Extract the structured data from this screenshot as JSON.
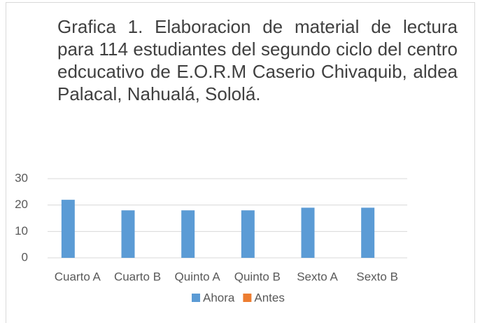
{
  "chart_data": {
    "type": "bar",
    "title": "Grafica 1. Elaboracion de material de lectura para 114 estudiantes del segundo ciclo del centro edcucativo de E.O.R.M Caserio Chivaquib, aldea Palacal, Nahualá, Sololá.",
    "categories": [
      "Cuarto A",
      "Cuarto B",
      "Quinto A",
      "Quinto B",
      "Sexto A",
      "Sexto B"
    ],
    "series": [
      {
        "name": "Ahora",
        "color": "#5b9bd5",
        "values": [
          22,
          18,
          18,
          18,
          19,
          19
        ]
      },
      {
        "name": "Antes",
        "color": "#ed7d31",
        "values": [
          0,
          0,
          0,
          0,
          0,
          0
        ]
      }
    ],
    "ylim": [
      0,
      30
    ],
    "yticks": [
      0,
      10,
      20,
      30
    ],
    "grid": true,
    "legend": "bottom"
  }
}
